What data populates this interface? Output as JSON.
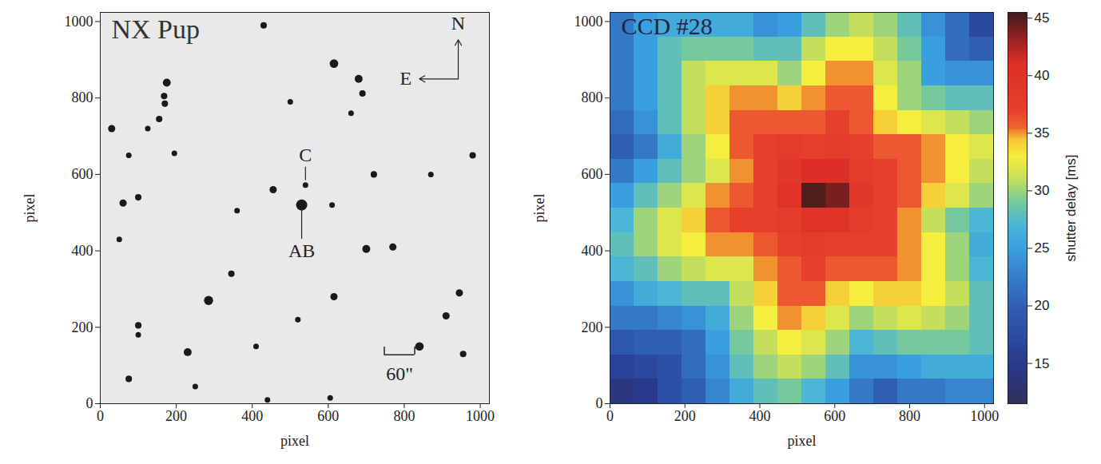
{
  "chart_data": [
    {
      "type": "scatter",
      "title": "NX Pup",
      "x_label": "pixel",
      "y_label": "pixel",
      "xlim": [
        0,
        1024
      ],
      "ylim": [
        0,
        1024
      ],
      "xticks": [
        0,
        200,
        400,
        600,
        800,
        1000
      ],
      "yticks": [
        0,
        200,
        400,
        600,
        800,
        1000
      ],
      "color": "#1a1a1a",
      "stars": {
        "x": [
          530,
          540,
          285,
          840,
          615,
          230,
          700,
          770,
          175,
          168,
          170,
          155,
          30,
          125,
          75,
          195,
          430,
          680,
          690,
          720,
          660,
          60,
          100,
          455,
          615,
          910,
          945,
          100,
          100,
          75,
          345,
          410,
          440,
          250,
          605,
          955,
          360,
          980,
          610,
          500,
          870,
          520,
          50
        ],
        "y": [
          520,
          572,
          270,
          150,
          890,
          135,
          405,
          410,
          840,
          805,
          785,
          745,
          720,
          720,
          650,
          655,
          990,
          850,
          812,
          600,
          760,
          525,
          540,
          560,
          280,
          230,
          290,
          205,
          180,
          65,
          340,
          150,
          10,
          45,
          15,
          130,
          505,
          650,
          520,
          790,
          600,
          220,
          430
        ],
        "size": [
          6,
          1.5,
          4,
          3.5,
          3.5,
          3,
          3,
          2.5,
          3,
          2,
          2,
          2,
          2.5,
          1.5,
          1.5,
          1.5,
          2,
          3,
          2,
          2,
          1.5,
          2.5,
          2,
          2.5,
          2.5,
          2.5,
          2.5,
          2,
          1.5,
          2,
          2,
          1.5,
          1.5,
          1.5,
          1.5,
          2,
          1.5,
          2,
          1.5,
          1.5,
          1.5,
          1.5,
          1.5
        ]
      },
      "annotations": [
        {
          "text": "C",
          "x": 540,
          "y": 650,
          "target": [
            540,
            572
          ]
        },
        {
          "text": "AB",
          "x": 530,
          "y": 400,
          "target": [
            530,
            520
          ]
        }
      ],
      "compass": {
        "north": "N",
        "east": "E"
      },
      "scale_bar": {
        "label": "60\"",
        "length": 80
      }
    },
    {
      "type": "heatmap",
      "title": "CCD #28",
      "x_label": "pixel",
      "y_label": "pixel",
      "xlim": [
        0,
        1024
      ],
      "ylim": [
        0,
        1024
      ],
      "xticks": [
        0,
        200,
        400,
        600,
        800,
        1000
      ],
      "yticks": [
        0,
        200,
        400,
        600,
        800,
        1000
      ],
      "x": [
        32,
        96,
        160,
        224,
        288,
        352,
        416,
        480,
        544,
        608,
        672,
        736,
        800,
        864,
        928,
        992
      ],
      "y": [
        32,
        96,
        160,
        224,
        288,
        352,
        416,
        480,
        544,
        608,
        672,
        736,
        800,
        864,
        928,
        992
      ],
      "values": [
        [
          14,
          15,
          18,
          20,
          23,
          26,
          28,
          29,
          27,
          25,
          22,
          20,
          22,
          22,
          23,
          23
        ],
        [
          16,
          17,
          18,
          21,
          24,
          28,
          30,
          31,
          30,
          28,
          24,
          24,
          25,
          26,
          26,
          26
        ],
        [
          19,
          20,
          20,
          21,
          25,
          29,
          31,
          33,
          32,
          30,
          27,
          28,
          29,
          29,
          29,
          28
        ],
        [
          22,
          22,
          23,
          24,
          26,
          30,
          33,
          35,
          34,
          32,
          30,
          31,
          32,
          31,
          30,
          28
        ],
        [
          24,
          26,
          27,
          28,
          28,
          31,
          34,
          36,
          36,
          34,
          33,
          34,
          34,
          33,
          31,
          28
        ],
        [
          27,
          28,
          30,
          31,
          32,
          32,
          35,
          36,
          37,
          36,
          36,
          36,
          35,
          33,
          30,
          27
        ],
        [
          28,
          30,
          32,
          33,
          35,
          35,
          36,
          37,
          38,
          37,
          37,
          37,
          35,
          33,
          30,
          26
        ],
        [
          27,
          30,
          32,
          34,
          36,
          37,
          37,
          38,
          40,
          40,
          38,
          37,
          35,
          31,
          29,
          27
        ],
        [
          25,
          28,
          30,
          32,
          35,
          36,
          37,
          40,
          45,
          44,
          39,
          37,
          36,
          34,
          32,
          30
        ],
        [
          22,
          25,
          28,
          30,
          32,
          35,
          37,
          39,
          41,
          41,
          38,
          37,
          36,
          35,
          33,
          31
        ],
        [
          20,
          22,
          26,
          30,
          33,
          36,
          37,
          38,
          37,
          38,
          37,
          36,
          36,
          35,
          33,
          32
        ],
        [
          21,
          24,
          28,
          31,
          34,
          36,
          36,
          36,
          36,
          37,
          36,
          34,
          33,
          32,
          31,
          30
        ],
        [
          22,
          25,
          28,
          31,
          34,
          35,
          35,
          34,
          35,
          36,
          36,
          33,
          30,
          29,
          28,
          28
        ],
        [
          22,
          25,
          28,
          31,
          32,
          32,
          32,
          30,
          33,
          35,
          35,
          32,
          30,
          25,
          24,
          24
        ],
        [
          22,
          25,
          28,
          29,
          29,
          29,
          28,
          28,
          31,
          33,
          33,
          31,
          29,
          25,
          21,
          20
        ],
        [
          22,
          25,
          26,
          26,
          26,
          26,
          24,
          25,
          28,
          30,
          31,
          30,
          28,
          24,
          21,
          17
        ]
      ],
      "colorbar": {
        "label": "shutter delay [ms]",
        "range": [
          11.5,
          45.5
        ],
        "ticks": [
          15,
          20,
          25,
          30,
          35,
          40,
          45
        ]
      }
    }
  ]
}
